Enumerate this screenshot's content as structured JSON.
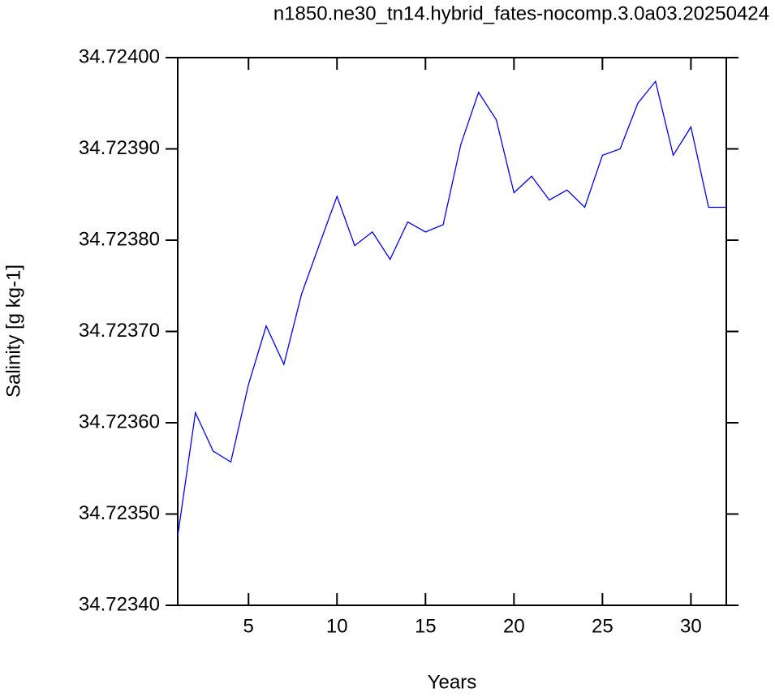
{
  "chart_data": {
    "type": "line",
    "title": "n1850.ne30_tn14.hybrid_fates-nocomp.3.0a03.20250424",
    "x_label": "Years",
    "y_label": "Salinity [g kg-1]",
    "x": [
      1,
      2,
      3,
      4,
      5,
      6,
      7,
      8,
      9,
      10,
      11,
      12,
      13,
      14,
      15,
      16,
      17,
      18,
      19,
      20,
      21,
      22,
      23,
      24,
      25,
      26,
      27,
      28,
      29,
      30,
      31,
      32
    ],
    "series": [
      {
        "color": "#0000ff",
        "values": [
          34.723476,
          34.723611,
          34.723569,
          34.723557,
          34.723642,
          34.723706,
          34.723664,
          34.723741,
          34.723795,
          34.723848,
          34.723794,
          34.723809,
          34.723779,
          34.72382,
          34.723809,
          34.723817,
          34.723905,
          34.723962,
          34.723932,
          34.723852,
          34.72387,
          34.723844,
          34.723855,
          34.723836,
          34.723893,
          34.7239,
          34.72395,
          34.723974,
          34.723893,
          34.723924,
          34.723836,
          34.723836
        ]
      }
    ],
    "xlim": [
      1,
      32
    ],
    "xticks": [
      5,
      10,
      15,
      20,
      25,
      30
    ],
    "ylim": [
      34.7234,
      34.724
    ],
    "yticks": [
      {
        "value": 34.7234,
        "label": "34.72340"
      },
      {
        "value": 34.7235,
        "label": "34.72350"
      },
      {
        "value": 34.7236,
        "label": "34.72360"
      },
      {
        "value": 34.7237,
        "label": "34.72370"
      },
      {
        "value": 34.7238,
        "label": "34.72380"
      },
      {
        "value": 34.7239,
        "label": "34.72390"
      },
      {
        "value": 34.724,
        "label": "34.72400"
      }
    ]
  }
}
